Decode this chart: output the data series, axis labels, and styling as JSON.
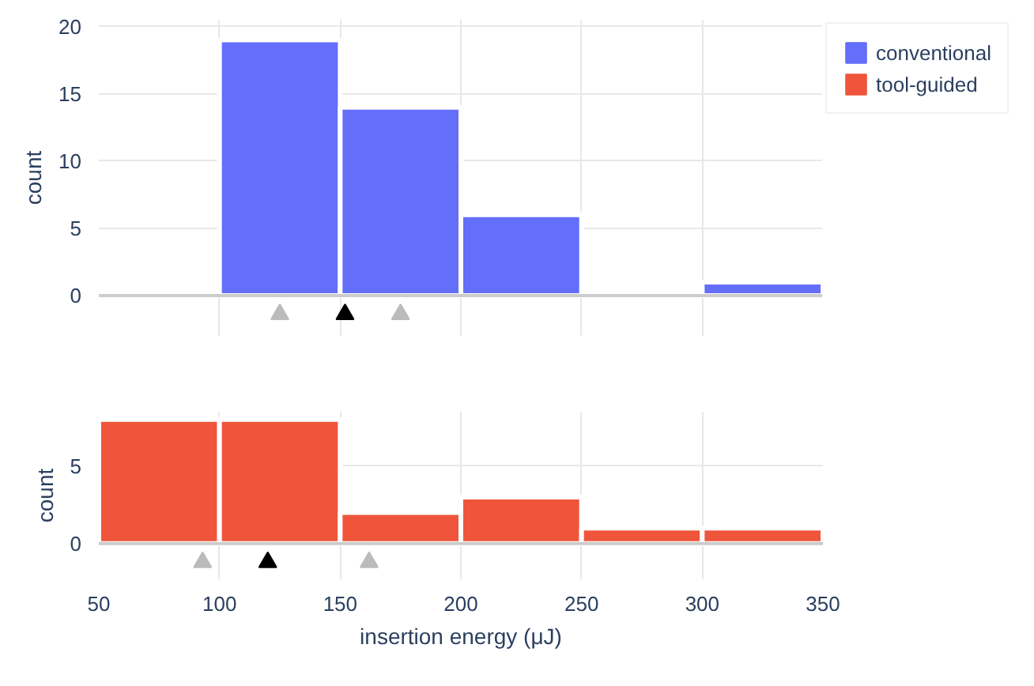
{
  "chart_data": [
    {
      "type": "histogram",
      "ylabel": "count",
      "bins": [
        50,
        100,
        150,
        200,
        250,
        300,
        350
      ],
      "xlim": [
        50,
        350
      ],
      "xticks": [
        50,
        100,
        150,
        200,
        250,
        300,
        350
      ],
      "ylim": [
        -3,
        20.5
      ],
      "yticks": [
        0,
        5,
        10,
        15,
        20
      ],
      "grid": true,
      "legend": "top right",
      "tick_labels": "y",
      "series": [
        {
          "name": "conventional",
          "color": "#636efa",
          "values": [
            0,
            19,
            14,
            6,
            0,
            1
          ]
        },
        {
          "type": "scatter",
          "marker": "triangle",
          "x": [
            125,
            152,
            175
          ],
          "values": [
            -1.4,
            -1.4,
            -1.4
          ],
          "colors": [
            "#bbbbbb",
            "#000000",
            "#bbbbbb"
          ]
        }
      ]
    },
    {
      "type": "histogram",
      "xlabel": "insertion energy (μJ)",
      "ylabel": "count",
      "bins": [
        50,
        100,
        150,
        200,
        250,
        300,
        350
      ],
      "xlim": [
        50,
        350
      ],
      "xticks": [
        50,
        100,
        150,
        200,
        250,
        300,
        350
      ],
      "ylim": [
        -2.3,
        8.5
      ],
      "yticks": [
        0,
        5
      ],
      "grid": true,
      "legend": "top right",
      "series": [
        {
          "name": "tool-guided",
          "color": "#ef553b",
          "values": [
            8,
            8,
            2,
            3,
            1,
            1
          ]
        },
        {
          "type": "scatter",
          "marker": "triangle",
          "x": [
            93,
            120,
            162
          ],
          "values": [
            -1.2,
            -1.2,
            -1.2
          ],
          "colors": [
            "#bbbbbb",
            "#000000",
            "#bbbbbb"
          ]
        }
      ]
    }
  ]
}
